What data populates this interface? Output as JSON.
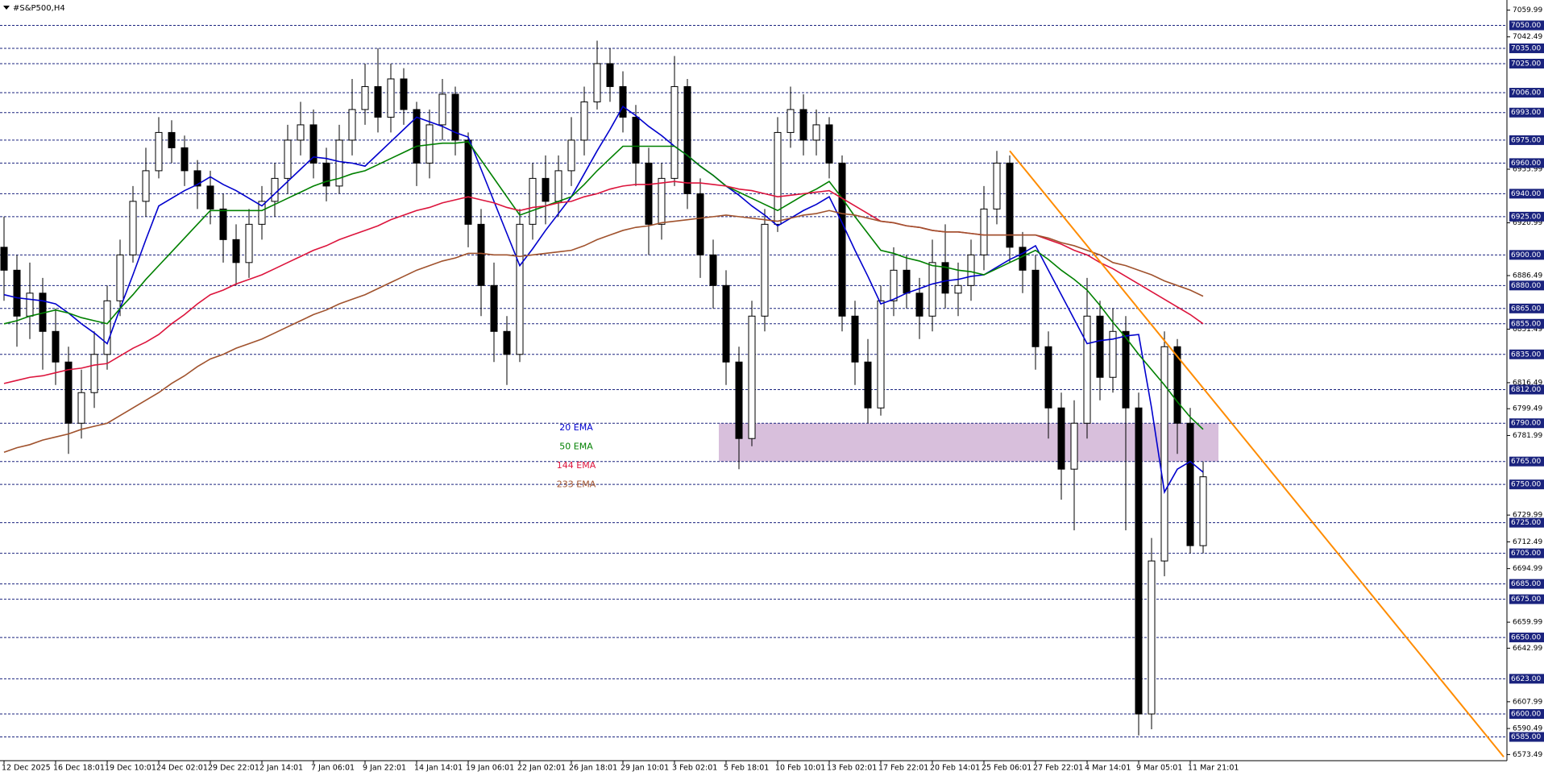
{
  "chart_data": {
    "type": "candlestick",
    "title": "#S&P500,H4",
    "categories": [
      "12 Dec 2025",
      null,
      null,
      null,
      "16 Dec 18:01",
      null,
      null,
      null,
      "19 Dec 10:01",
      null,
      null,
      null,
      "24 Dec 02:01",
      null,
      null,
      null,
      "29 Dec 22:01",
      null,
      null,
      null,
      "2 Jan 14:01",
      null,
      null,
      null,
      "7 Jan 06:01",
      null,
      null,
      null,
      "9 Jan 22:01",
      null,
      null,
      null,
      "14 Jan 14:01",
      null,
      null,
      null,
      "19 Jan 06:01",
      null,
      null,
      null,
      "22 Jan 02:01",
      null,
      null,
      null,
      "26 Jan 18:01",
      null,
      null,
      null,
      "29 Jan 10:01",
      null,
      null,
      null,
      "3 Feb 02:01",
      null,
      null,
      null,
      "5 Feb 18:01",
      null,
      null,
      null,
      "10 Feb 10:01",
      null,
      null,
      null,
      "13 Feb 02:01",
      null,
      null,
      null,
      "17 Feb 22:01",
      null,
      null,
      null,
      "20 Feb 14:01",
      null,
      null,
      null,
      "25 Feb 06:01",
      null,
      null,
      null,
      "27 Feb 22:01",
      null,
      null,
      null,
      "4 Mar 14:01",
      null,
      null,
      null,
      "9 Mar 05:01",
      null,
      null,
      null,
      "11 Mar 21:01",
      null
    ],
    "open": [
      6905,
      6890,
      6860,
      6875,
      6850,
      6830,
      6790,
      6810,
      6835,
      6870,
      6900,
      6935,
      6955,
      6980,
      6970,
      6955,
      6945,
      6930,
      6910,
      6895,
      6920,
      6935,
      6950,
      6975,
      6985,
      6960,
      6945,
      6975,
      6995,
      7010,
      6990,
      7015,
      6995,
      6960,
      6985,
      7005,
      6975,
      6920,
      6880,
      6850,
      6835,
      6920,
      6950,
      6935,
      6955,
      6975,
      7000,
      7025,
      7010,
      6990,
      6960,
      6920,
      6950,
      7010,
      6940,
      6900,
      6880,
      6830,
      6780,
      6860,
      6920,
      6980,
      6995,
      6975,
      6985,
      6960,
      6860,
      6830,
      6800,
      6870,
      6890,
      6875,
      6860,
      6895,
      6875,
      6880,
      6900,
      6930,
      6960,
      6905,
      6890,
      6840,
      6800,
      6760,
      6790,
      6860,
      6820,
      6850,
      6800,
      6600,
      6700,
      6840,
      6790,
      6710
    ],
    "high": [
      6925,
      6900,
      6895,
      6885,
      6865,
      6840,
      6825,
      6850,
      6880,
      6910,
      6945,
      6970,
      6990,
      6988,
      6978,
      6962,
      6955,
      6940,
      6920,
      6930,
      6945,
      6960,
      6985,
      7000,
      6995,
      6970,
      6985,
      7015,
      7025,
      7035,
      7025,
      7022,
      7000,
      6995,
      7015,
      7010,
      6980,
      6930,
      6895,
      6860,
      6930,
      6960,
      6965,
      6965,
      6990,
      7010,
      7040,
      7035,
      7020,
      6998,
      6970,
      6960,
      7030,
      7015,
      6950,
      6910,
      6890,
      6840,
      6870,
      6930,
      6990,
      7010,
      7005,
      6995,
      6990,
      6965,
      6870,
      6845,
      6880,
      6905,
      6900,
      6885,
      6910,
      6920,
      6895,
      6910,
      6945,
      6968,
      6965,
      6915,
      6900,
      6850,
      6810,
      6805,
      6885,
      6870,
      6865,
      6860,
      6810,
      6715,
      6850,
      6845,
      6800,
      6765
    ],
    "low": [
      6870,
      6840,
      6845,
      6825,
      6815,
      6770,
      6780,
      6800,
      6825,
      6860,
      6895,
      6925,
      6950,
      6960,
      6945,
      6930,
      6920,
      6895,
      6880,
      6885,
      6910,
      6925,
      6940,
      6965,
      6950,
      6935,
      6940,
      6965,
      6985,
      6980,
      6980,
      6985,
      6945,
      6950,
      6975,
      6965,
      6905,
      6860,
      6830,
      6815,
      6830,
      6910,
      6920,
      6925,
      6945,
      6965,
      6995,
      7000,
      6980,
      6945,
      6900,
      6910,
      6945,
      6930,
      6885,
      6865,
      6815,
      6760,
      6775,
      6850,
      6915,
      6970,
      6965,
      6965,
      6950,
      6850,
      6815,
      6790,
      6795,
      6860,
      6865,
      6845,
      6850,
      6865,
      6860,
      6870,
      6890,
      6920,
      6895,
      6875,
      6825,
      6780,
      6740,
      6720,
      6780,
      6805,
      6810,
      6720,
      6586,
      6590,
      6690,
      6770,
      6705,
      6705
    ],
    "close": [
      6890,
      6860,
      6875,
      6850,
      6830,
      6790,
      6810,
      6835,
      6870,
      6900,
      6935,
      6955,
      6980,
      6970,
      6955,
      6945,
      6930,
      6910,
      6895,
      6920,
      6935,
      6950,
      6975,
      6985,
      6960,
      6945,
      6975,
      6995,
      7010,
      6990,
      7015,
      6995,
      6960,
      6985,
      7005,
      6975,
      6920,
      6880,
      6850,
      6835,
      6920,
      6950,
      6935,
      6955,
      6975,
      7000,
      7025,
      7010,
      6990,
      6960,
      6920,
      6950,
      7010,
      6940,
      6900,
      6880,
      6830,
      6780,
      6860,
      6920,
      6980,
      6995,
      6975,
      6985,
      6960,
      6860,
      6830,
      6800,
      6870,
      6890,
      6875,
      6860,
      6895,
      6875,
      6880,
      6900,
      6930,
      6960,
      6905,
      6890,
      6840,
      6800,
      6760,
      6790,
      6860,
      6820,
      6850,
      6800,
      6600,
      6700,
      6840,
      6790,
      6710,
      6755
    ],
    "series": [
      {
        "name": "20 EMA",
        "color": "#0000cd",
        "values": [
          6874,
          6872,
          6871,
          6870,
          6868,
          6862,
          6855,
          6849,
          6842,
          6865,
          6887,
          6910,
          6932,
          6937,
          6942,
          6946,
          6951,
          6946,
          6942,
          6937,
          6932,
          6940,
          6948,
          6956,
          6964,
          6963,
          6961,
          6960,
          6958,
          6966,
          6974,
          6982,
          6990,
          6987,
          6984,
          6980,
          6977,
          6956,
          6935,
          6914,
          6893,
          6904,
          6916,
          6927,
          6938,
          6953,
          6968,
          6982,
          6997,
          6991,
          6984,
          6978,
          6971,
          6965,
          6958,
          6952,
          6945,
          6939,
          6932,
          6926,
          6919,
          6924,
          6929,
          6933,
          6938,
          6921,
          6903,
          6886,
          6868,
          6871,
          6875,
          6878,
          6881,
          6883,
          6884,
          6886,
          6887,
          6892,
          6897,
          6901,
          6906,
          6890,
          6874,
          6858,
          6842,
          6844,
          6845,
          6847,
          6848,
          6800,
          6745,
          6760,
          6765,
          6758
        ]
      },
      {
        "name": "50 EMA",
        "color": "#008000",
        "values": [
          6855,
          6857,
          6860,
          6862,
          6864,
          6862,
          6859,
          6857,
          6855,
          6865,
          6874,
          6884,
          6893,
          6902,
          6911,
          6920,
          6929,
          6929,
          6929,
          6929,
          6929,
          6933,
          6937,
          6941,
          6945,
          6948,
          6950,
          6953,
          6955,
          6959,
          6963,
          6967,
          6971,
          6972,
          6973,
          6973,
          6974,
          6962,
          6950,
          6938,
          6926,
          6929,
          6932,
          6935,
          6938,
          6946,
          6955,
          6963,
          6971,
          6971,
          6971,
          6971,
          6971,
          6965,
          6958,
          6952,
          6945,
          6941,
          6937,
          6933,
          6929,
          6934,
          6939,
          6943,
          6948,
          6937,
          6925,
          6914,
          6903,
          6901,
          6898,
          6896,
          6893,
          6892,
          6890,
          6889,
          6887,
          6891,
          6895,
          6899,
          6903,
          6897,
          6890,
          6884,
          6877,
          6867,
          6856,
          6846,
          6835,
          6825,
          6815,
          6804,
          6794,
          6786
        ]
      },
      {
        "name": "144 EMA",
        "color": "#dc143c",
        "values": [
          6816,
          6818,
          6820,
          6821,
          6823,
          6825,
          6826,
          6828,
          6829,
          6834,
          6839,
          6843,
          6848,
          6855,
          6861,
          6868,
          6874,
          6877,
          6881,
          6884,
          6887,
          6891,
          6895,
          6899,
          6903,
          6906,
          6910,
          6913,
          6916,
          6919,
          6923,
          6926,
          6929,
          6931,
          6934,
          6936,
          6938,
          6936,
          6934,
          6931,
          6929,
          6931,
          6932,
          6934,
          6935,
          6938,
          6940,
          6943,
          6945,
          6946,
          6946,
          6947,
          6948,
          6947,
          6947,
          6946,
          6945,
          6943,
          6942,
          6940,
          6938,
          6939,
          6940,
          6941,
          6942,
          6937,
          6932,
          6927,
          6922,
          6921,
          6919,
          6918,
          6916,
          6915,
          6915,
          6914,
          6913,
          6913,
          6913,
          6913,
          6913,
          6910,
          6907,
          6903,
          6900,
          6895,
          6891,
          6886,
          6881,
          6876,
          6871,
          6866,
          6861,
          6855
        ]
      },
      {
        "name": "233 EMA",
        "color": "#a0522d",
        "values": [
          6771,
          6774,
          6776,
          6779,
          6781,
          6783,
          6786,
          6788,
          6790,
          6795,
          6800,
          6805,
          6810,
          6816,
          6821,
          6827,
          6832,
          6835,
          6839,
          6842,
          6845,
          6849,
          6853,
          6857,
          6861,
          6864,
          6868,
          6871,
          6874,
          6878,
          6882,
          6886,
          6890,
          6893,
          6896,
          6898,
          6901,
          6901,
          6900,
          6900,
          6899,
          6900,
          6901,
          6902,
          6903,
          6906,
          6910,
          6913,
          6916,
          6918,
          6919,
          6921,
          6922,
          6923,
          6924,
          6925,
          6926,
          6925,
          6924,
          6923,
          6922,
          6924,
          6926,
          6927,
          6929,
          6927,
          6926,
          6924,
          6922,
          6921,
          6919,
          6918,
          6916,
          6915,
          6915,
          6914,
          6913,
          6913,
          6913,
          6913,
          6913,
          6911,
          6908,
          6906,
          6903,
          6900,
          6895,
          6893,
          6890,
          6887,
          6883,
          6880,
          6877,
          6873
        ]
      }
    ],
    "ylim": [
      6570,
      7065
    ],
    "yticks": [
      7059.99,
      7042.49,
      6955.99,
      6920.99,
      6886.49,
      6851.49,
      6816.49,
      6799.49,
      6781.99,
      6729.99,
      6712.49,
      6694.99,
      6659.99,
      6642.99,
      6607.99,
      6590.49,
      6573.49
    ],
    "levels": [
      {
        "value": 7050,
        "label": "7050.00"
      },
      {
        "value": 7035,
        "label": "7035.00"
      },
      {
        "value": 7025,
        "label": "7025.00"
      },
      {
        "value": 7006,
        "label": "7006.00"
      },
      {
        "value": 6993,
        "label": "6993.00"
      },
      {
        "value": 6975,
        "label": "6975.00"
      },
      {
        "value": 6960,
        "label": "6960.00"
      },
      {
        "value": 6940,
        "label": "6940.00"
      },
      {
        "value": 6925,
        "label": "6925.00"
      },
      {
        "value": 6900,
        "label": "6900.00"
      },
      {
        "value": 6880,
        "label": "6880.00"
      },
      {
        "value": 6865,
        "label": "6865.00"
      },
      {
        "value": 6855,
        "label": "6855.00"
      },
      {
        "value": 6835,
        "label": "6835.00"
      },
      {
        "value": 6812,
        "label": "6812.00"
      },
      {
        "value": 6790,
        "label": "6790.00"
      },
      {
        "value": 6765,
        "label": "6765.00"
      },
      {
        "value": 6750,
        "label": "6750.00"
      },
      {
        "value": 6725,
        "label": "6725.00"
      },
      {
        "value": 6705,
        "label": "6705.00"
      },
      {
        "value": 6685,
        "label": "6685.00"
      },
      {
        "value": 6675,
        "label": "6675.00"
      },
      {
        "value": 6650,
        "label": "6650.00"
      },
      {
        "value": 6623,
        "label": "6623.00"
      },
      {
        "value": 6600,
        "label": "6600.00"
      },
      {
        "value": 6585,
        "label": "6585.00"
      }
    ],
    "level_color": "#1a237e",
    "zone": [
      6765,
      6790
    ],
    "zone_color": "#d8bfdc",
    "trendline": [
      6968,
      6572
    ],
    "trendline_color": "#ff8c00",
    "grid": false
  }
}
